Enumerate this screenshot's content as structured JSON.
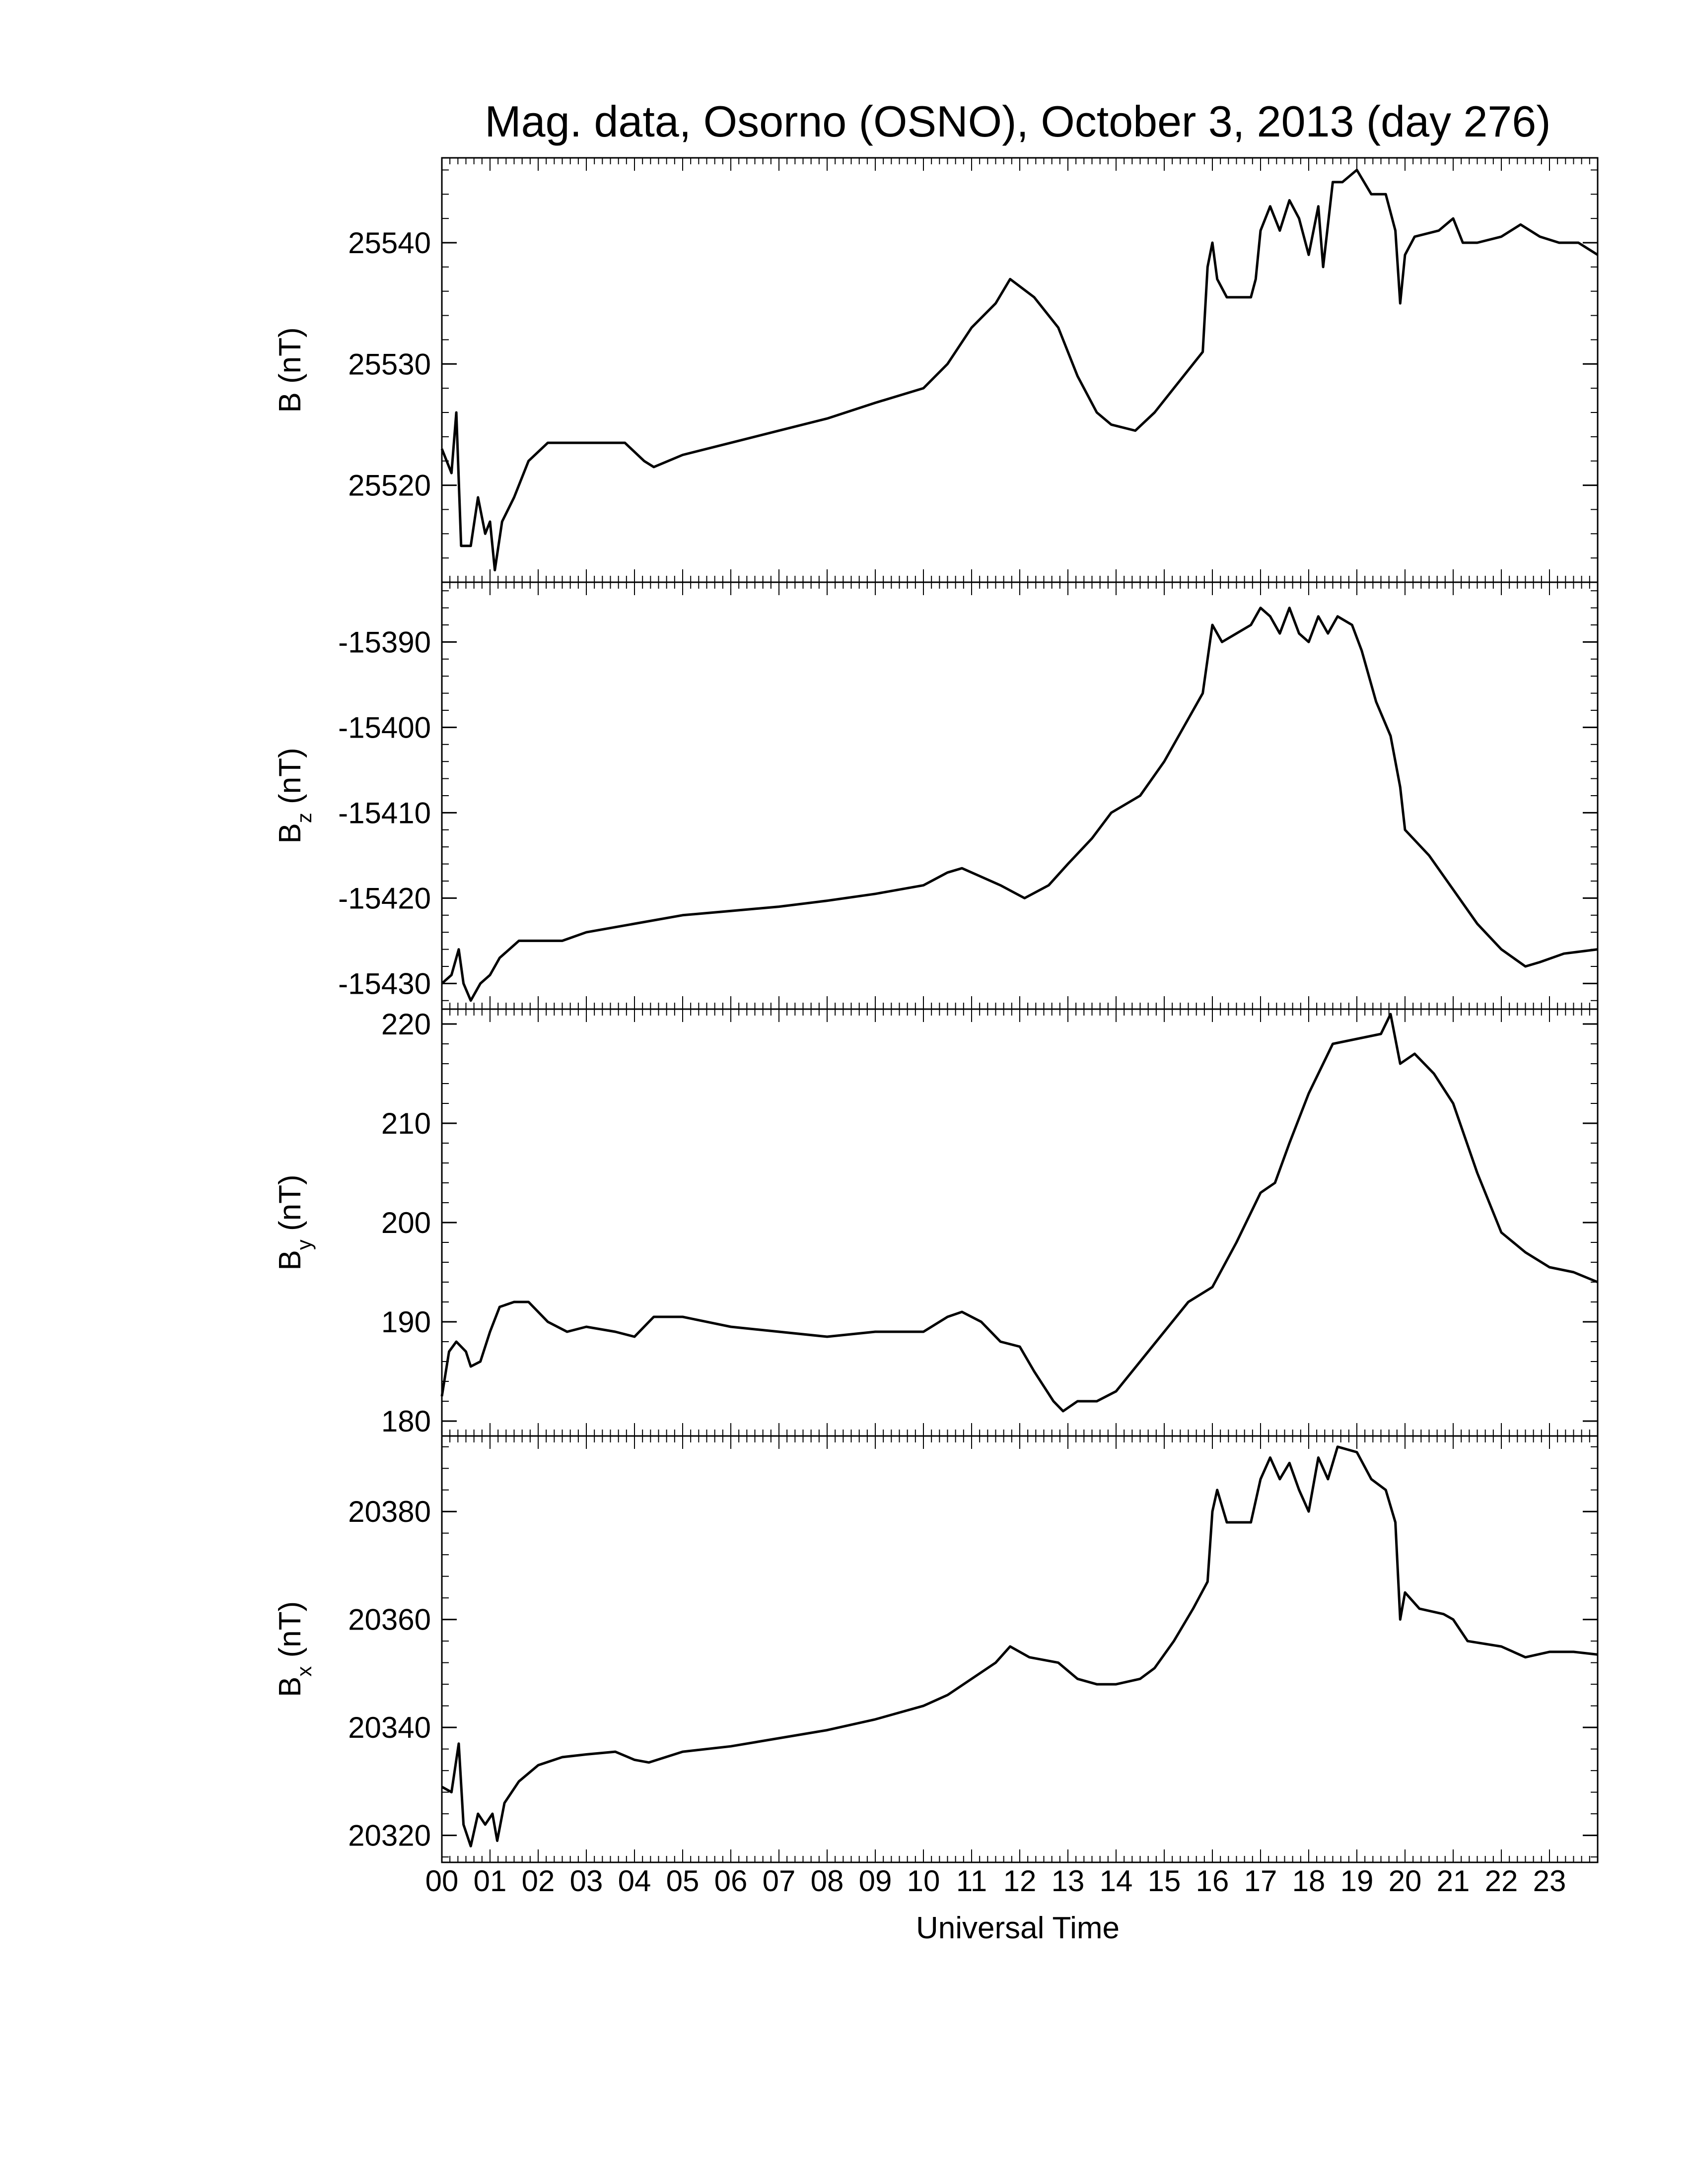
{
  "chart_data": {
    "type": "line",
    "title": "Mag. data, Osorno (OSNO), October 3, 2013 (day 276)",
    "xlabel": "Universal Time",
    "xlim": [
      0,
      24
    ],
    "x_tick_labels": [
      "00",
      "01",
      "02",
      "03",
      "04",
      "05",
      "06",
      "07",
      "08",
      "09",
      "10",
      "11",
      "12",
      "13",
      "14",
      "15",
      "16",
      "17",
      "18",
      "19",
      "20",
      "21",
      "22",
      "23"
    ],
    "line_color": "#000000",
    "panels": [
      {
        "ylabel_main": "B",
        "ylabel_sub": "",
        "ylabel_unit": " (nT)",
        "ylim": [
          25512,
          25547
        ],
        "yticks": [
          25520,
          25530,
          25540
        ],
        "minor_step": 2,
        "data": [
          [
            0,
            25523
          ],
          [
            0.2,
            25521
          ],
          [
            0.3,
            25526
          ],
          [
            0.4,
            25515
          ],
          [
            0.6,
            25515
          ],
          [
            0.75,
            25519
          ],
          [
            0.9,
            25516
          ],
          [
            1.0,
            25517
          ],
          [
            1.1,
            25513
          ],
          [
            1.25,
            25517
          ],
          [
            1.5,
            25519
          ],
          [
            1.8,
            25522
          ],
          [
            2.2,
            25523.5
          ],
          [
            3.0,
            25523.5
          ],
          [
            3.8,
            25523.5
          ],
          [
            4.2,
            25522
          ],
          [
            4.4,
            25521.5
          ],
          [
            5,
            25522.5
          ],
          [
            6,
            25523.5
          ],
          [
            7,
            25524.5
          ],
          [
            8,
            25525.5
          ],
          [
            9,
            25526.8
          ],
          [
            10,
            25528
          ],
          [
            10.5,
            25530
          ],
          [
            11,
            25533
          ],
          [
            11.5,
            25535
          ],
          [
            11.8,
            25537
          ],
          [
            12.3,
            25535.5
          ],
          [
            12.8,
            25533
          ],
          [
            13.2,
            25529
          ],
          [
            13.6,
            25526
          ],
          [
            13.9,
            25525
          ],
          [
            14.4,
            25524.5
          ],
          [
            14.8,
            25526
          ],
          [
            15.2,
            25528
          ],
          [
            15.6,
            25530
          ],
          [
            15.8,
            25531
          ],
          [
            15.9,
            25538
          ],
          [
            16.0,
            25540
          ],
          [
            16.1,
            25537
          ],
          [
            16.3,
            25535.5
          ],
          [
            16.8,
            25535.5
          ],
          [
            16.9,
            25537
          ],
          [
            17.0,
            25541
          ],
          [
            17.2,
            25543
          ],
          [
            17.4,
            25541
          ],
          [
            17.6,
            25543.5
          ],
          [
            17.8,
            25542
          ],
          [
            18.0,
            25539
          ],
          [
            18.2,
            25543
          ],
          [
            18.3,
            25538
          ],
          [
            18.5,
            25545
          ],
          [
            18.7,
            25545
          ],
          [
            19.0,
            25546
          ],
          [
            19.3,
            25544
          ],
          [
            19.6,
            25544
          ],
          [
            19.8,
            25541
          ],
          [
            19.9,
            25535
          ],
          [
            20.0,
            25539
          ],
          [
            20.2,
            25540.5
          ],
          [
            20.7,
            25541
          ],
          [
            21.0,
            25542
          ],
          [
            21.2,
            25540
          ],
          [
            21.5,
            25540
          ],
          [
            22.0,
            25540.5
          ],
          [
            22.4,
            25541.5
          ],
          [
            22.8,
            25540.5
          ],
          [
            23.2,
            25540
          ],
          [
            23.6,
            25540
          ],
          [
            24,
            25539
          ]
        ]
      },
      {
        "ylabel_main": "B",
        "ylabel_sub": "z",
        "ylabel_unit": " (nT)",
        "ylim": [
          -15433,
          -15383
        ],
        "yticks": [
          -15430,
          -15420,
          -15410,
          -15400,
          -15390
        ],
        "minor_step": 2,
        "data": [
          [
            0,
            -15430
          ],
          [
            0.2,
            -15429
          ],
          [
            0.35,
            -15426
          ],
          [
            0.45,
            -15430
          ],
          [
            0.6,
            -15432
          ],
          [
            0.8,
            -15430
          ],
          [
            1.0,
            -15429
          ],
          [
            1.2,
            -15427
          ],
          [
            1.6,
            -15425
          ],
          [
            2.5,
            -15425
          ],
          [
            3.0,
            -15424
          ],
          [
            4.0,
            -15423
          ],
          [
            5.0,
            -15422
          ],
          [
            6.0,
            -15421.5
          ],
          [
            7.0,
            -15421
          ],
          [
            8.0,
            -15420.3
          ],
          [
            9.0,
            -15419.5
          ],
          [
            10.0,
            -15418.5
          ],
          [
            10.5,
            -15417
          ],
          [
            10.8,
            -15416.5
          ],
          [
            11.2,
            -15417.5
          ],
          [
            11.6,
            -15418.5
          ],
          [
            12.1,
            -15420
          ],
          [
            12.6,
            -15418.5
          ],
          [
            13.0,
            -15416
          ],
          [
            13.5,
            -15413
          ],
          [
            13.9,
            -15410
          ],
          [
            14.5,
            -15408
          ],
          [
            15.0,
            -15404
          ],
          [
            15.5,
            -15399
          ],
          [
            15.8,
            -15396
          ],
          [
            15.9,
            -15392
          ],
          [
            16.0,
            -15388
          ],
          [
            16.2,
            -15390
          ],
          [
            16.5,
            -15389
          ],
          [
            16.8,
            -15388
          ],
          [
            17.0,
            -15386
          ],
          [
            17.2,
            -15387
          ],
          [
            17.4,
            -15389
          ],
          [
            17.6,
            -15386
          ],
          [
            17.8,
            -15389
          ],
          [
            18.0,
            -15390
          ],
          [
            18.2,
            -15387
          ],
          [
            18.4,
            -15389
          ],
          [
            18.6,
            -15387
          ],
          [
            18.9,
            -15388
          ],
          [
            19.1,
            -15391
          ],
          [
            19.4,
            -15397
          ],
          [
            19.7,
            -15401
          ],
          [
            19.9,
            -15407
          ],
          [
            20.0,
            -15412
          ],
          [
            20.5,
            -15415
          ],
          [
            21.0,
            -15419
          ],
          [
            21.5,
            -15423
          ],
          [
            22.0,
            -15426
          ],
          [
            22.5,
            -15428
          ],
          [
            22.8,
            -15427.5
          ],
          [
            23.3,
            -15426.5
          ],
          [
            24,
            -15426
          ]
        ]
      },
      {
        "ylabel_main": "B",
        "ylabel_sub": "y",
        "ylabel_unit": " (nT)",
        "ylim": [
          178.5,
          221.5
        ],
        "yticks": [
          180,
          190,
          200,
          210,
          220
        ],
        "minor_step": 2,
        "data": [
          [
            0,
            182.5
          ],
          [
            0.15,
            187
          ],
          [
            0.3,
            188
          ],
          [
            0.5,
            187
          ],
          [
            0.6,
            185.5
          ],
          [
            0.8,
            186
          ],
          [
            1.0,
            189
          ],
          [
            1.2,
            191.5
          ],
          [
            1.5,
            192
          ],
          [
            1.8,
            192
          ],
          [
            2.2,
            190
          ],
          [
            2.6,
            189
          ],
          [
            3.0,
            189.5
          ],
          [
            3.6,
            189
          ],
          [
            4.0,
            188.5
          ],
          [
            4.4,
            190.5
          ],
          [
            5.0,
            190.5
          ],
          [
            6.0,
            189.5
          ],
          [
            7.0,
            189
          ],
          [
            8.0,
            188.5
          ],
          [
            9.0,
            189
          ],
          [
            10.0,
            189
          ],
          [
            10.5,
            190.5
          ],
          [
            10.8,
            191
          ],
          [
            11.2,
            190
          ],
          [
            11.6,
            188
          ],
          [
            12.0,
            187.5
          ],
          [
            12.3,
            185
          ],
          [
            12.7,
            182
          ],
          [
            12.9,
            181
          ],
          [
            13.2,
            182
          ],
          [
            13.6,
            182
          ],
          [
            14.0,
            183
          ],
          [
            14.5,
            186
          ],
          [
            15.0,
            189
          ],
          [
            15.5,
            192
          ],
          [
            16.0,
            193.5
          ],
          [
            16.5,
            198
          ],
          [
            17.0,
            203
          ],
          [
            17.3,
            204
          ],
          [
            17.6,
            208
          ],
          [
            18.0,
            213
          ],
          [
            18.3,
            216
          ],
          [
            18.5,
            218
          ],
          [
            19.0,
            218.5
          ],
          [
            19.5,
            219
          ],
          [
            19.7,
            221
          ],
          [
            19.9,
            216
          ],
          [
            20.2,
            217
          ],
          [
            20.6,
            215
          ],
          [
            21.0,
            212
          ],
          [
            21.5,
            205
          ],
          [
            22.0,
            199
          ],
          [
            22.5,
            197
          ],
          [
            23.0,
            195.5
          ],
          [
            23.5,
            195
          ],
          [
            24,
            194
          ]
        ]
      },
      {
        "ylabel_main": "B",
        "ylabel_sub": "x",
        "ylabel_unit": " (nT)",
        "ylim": [
          20315,
          20394
        ],
        "yticks": [
          20320,
          20340,
          20360,
          20380
        ],
        "minor_step": 4,
        "data": [
          [
            0,
            20329
          ],
          [
            0.2,
            20328
          ],
          [
            0.35,
            20337
          ],
          [
            0.45,
            20322
          ],
          [
            0.6,
            20318
          ],
          [
            0.75,
            20324
          ],
          [
            0.9,
            20322
          ],
          [
            1.05,
            20324
          ],
          [
            1.15,
            20319
          ],
          [
            1.3,
            20326
          ],
          [
            1.6,
            20330
          ],
          [
            2.0,
            20333
          ],
          [
            2.5,
            20334.5
          ],
          [
            3.0,
            20335
          ],
          [
            3.6,
            20335.5
          ],
          [
            4.0,
            20334
          ],
          [
            4.3,
            20333.5
          ],
          [
            5.0,
            20335.5
          ],
          [
            6.0,
            20336.5
          ],
          [
            7.0,
            20338
          ],
          [
            8.0,
            20339.5
          ],
          [
            9.0,
            20341.5
          ],
          [
            10.0,
            20344
          ],
          [
            10.5,
            20346
          ],
          [
            11.0,
            20349
          ],
          [
            11.5,
            20352
          ],
          [
            11.8,
            20355
          ],
          [
            12.2,
            20353
          ],
          [
            12.8,
            20352
          ],
          [
            13.2,
            20349
          ],
          [
            13.6,
            20348
          ],
          [
            14.0,
            20348
          ],
          [
            14.5,
            20349
          ],
          [
            14.8,
            20351
          ],
          [
            15.2,
            20356
          ],
          [
            15.6,
            20362
          ],
          [
            15.9,
            20367
          ],
          [
            16.0,
            20380
          ],
          [
            16.1,
            20384
          ],
          [
            16.3,
            20378
          ],
          [
            16.8,
            20378
          ],
          [
            17.0,
            20386
          ],
          [
            17.2,
            20390
          ],
          [
            17.4,
            20386
          ],
          [
            17.6,
            20389
          ],
          [
            17.8,
            20384
          ],
          [
            18.0,
            20380
          ],
          [
            18.2,
            20390
          ],
          [
            18.4,
            20386
          ],
          [
            18.6,
            20392
          ],
          [
            19.0,
            20391
          ],
          [
            19.3,
            20386
          ],
          [
            19.6,
            20384
          ],
          [
            19.8,
            20378
          ],
          [
            19.9,
            20360
          ],
          [
            20.0,
            20365
          ],
          [
            20.3,
            20362
          ],
          [
            20.8,
            20361
          ],
          [
            21.0,
            20360
          ],
          [
            21.3,
            20356
          ],
          [
            22.0,
            20355
          ],
          [
            22.5,
            20353
          ],
          [
            23.0,
            20354
          ],
          [
            23.5,
            20354
          ],
          [
            24,
            20353.5
          ]
        ]
      }
    ]
  }
}
